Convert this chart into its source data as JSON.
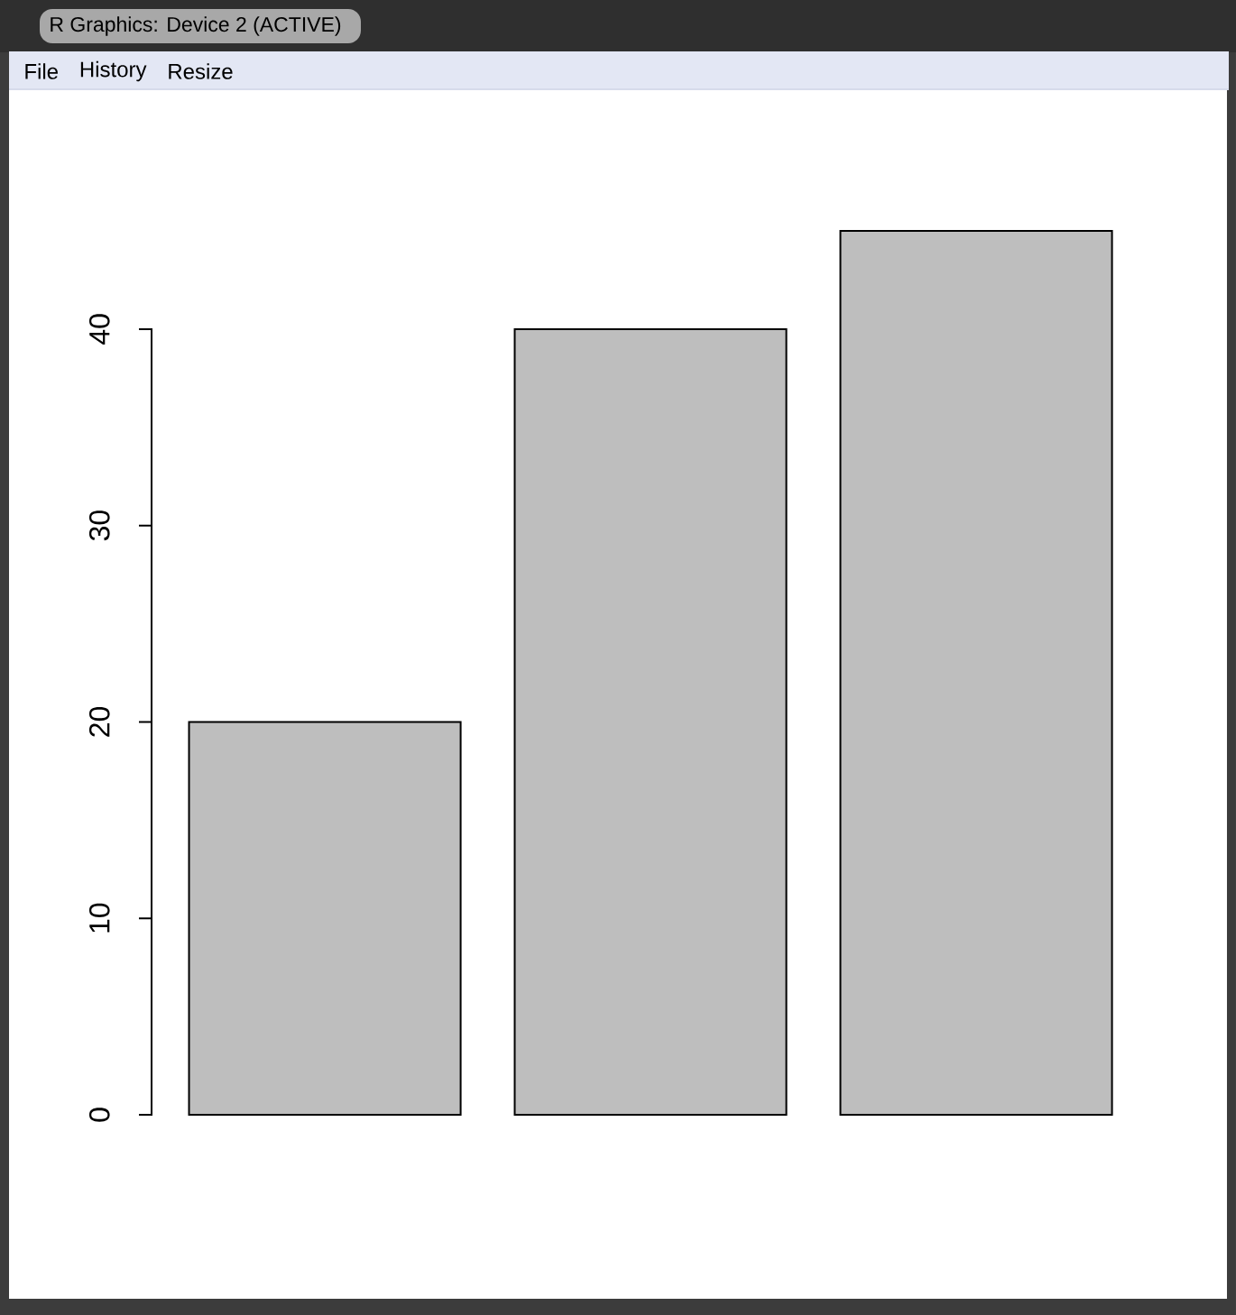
{
  "chart_data": {
    "type": "bar",
    "categories": [
      null,
      null,
      null
    ],
    "values": [
      20,
      40,
      45
    ],
    "color": "#bebebe",
    "ylim": [
      0,
      45
    ],
    "yticks": [
      0,
      10,
      20,
      30,
      40
    ],
    "annotations": [
      "R Graphics: Device 2 (ACTIVE)",
      "File",
      "History",
      "Resize"
    ]
  }
}
